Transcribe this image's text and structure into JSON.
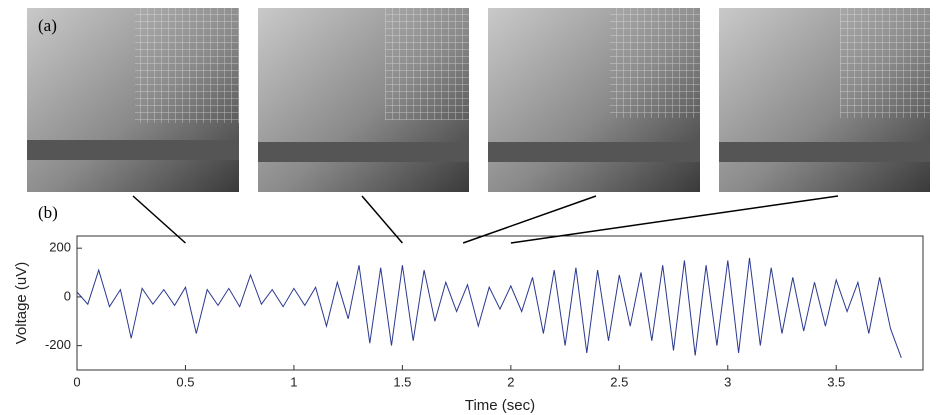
{
  "chart_data": {
    "type": "line",
    "panel_labels": [
      "(a)",
      "(b)"
    ],
    "xlabel": "Time (sec)",
    "ylabel": "Voltage (uV)",
    "frame_times": [
      0.5,
      1.5,
      1.78,
      2.0
    ],
    "xlim": [
      0,
      3.9
    ],
    "ylim": [
      -300,
      250
    ],
    "xticks": [
      0,
      0.5,
      1,
      1.5,
      2,
      2.5,
      3,
      3.5
    ],
    "yticks": [
      -200,
      0,
      200
    ],
    "x": [
      0,
      0.05,
      0.1,
      0.15,
      0.2,
      0.25,
      0.3,
      0.35,
      0.4,
      0.45,
      0.5,
      0.55,
      0.6,
      0.65,
      0.7,
      0.75,
      0.8,
      0.85,
      0.9,
      0.95,
      1,
      1.05,
      1.1,
      1.15,
      1.2,
      1.25,
      1.3,
      1.35,
      1.4,
      1.45,
      1.5,
      1.55,
      1.6,
      1.65,
      1.7,
      1.75,
      1.8,
      1.85,
      1.9,
      1.95,
      2,
      2.05,
      2.1,
      2.15,
      2.2,
      2.25,
      2.3,
      2.35,
      2.4,
      2.45,
      2.5,
      2.55,
      2.6,
      2.65,
      2.7,
      2.75,
      2.8,
      2.85,
      2.9,
      2.95,
      3,
      3.05,
      3.1,
      3.15,
      3.2,
      3.25,
      3.3,
      3.35,
      3.4,
      3.45,
      3.5,
      3.55,
      3.6,
      3.65,
      3.7,
      3.75,
      3.8
    ],
    "series": [
      {
        "color": "#2b3990",
        "values": [
          20,
          -30,
          110,
          -40,
          30,
          -170,
          35,
          -30,
          30,
          -35,
          40,
          -150,
          30,
          -35,
          35,
          -40,
          90,
          -30,
          30,
          -40,
          35,
          -35,
          40,
          -120,
          60,
          -90,
          130,
          -190,
          120,
          -200,
          130,
          -180,
          110,
          -100,
          60,
          -60,
          50,
          -120,
          40,
          -50,
          45,
          -60,
          80,
          -150,
          110,
          -200,
          120,
          -230,
          110,
          -180,
          90,
          -120,
          100,
          -180,
          130,
          -220,
          150,
          -240,
          130,
          -200,
          150,
          -230,
          160,
          -200,
          120,
          -150,
          80,
          -140,
          60,
          -120,
          70,
          -60,
          60,
          -150,
          80,
          -130,
          -250
        ]
      }
    ]
  }
}
